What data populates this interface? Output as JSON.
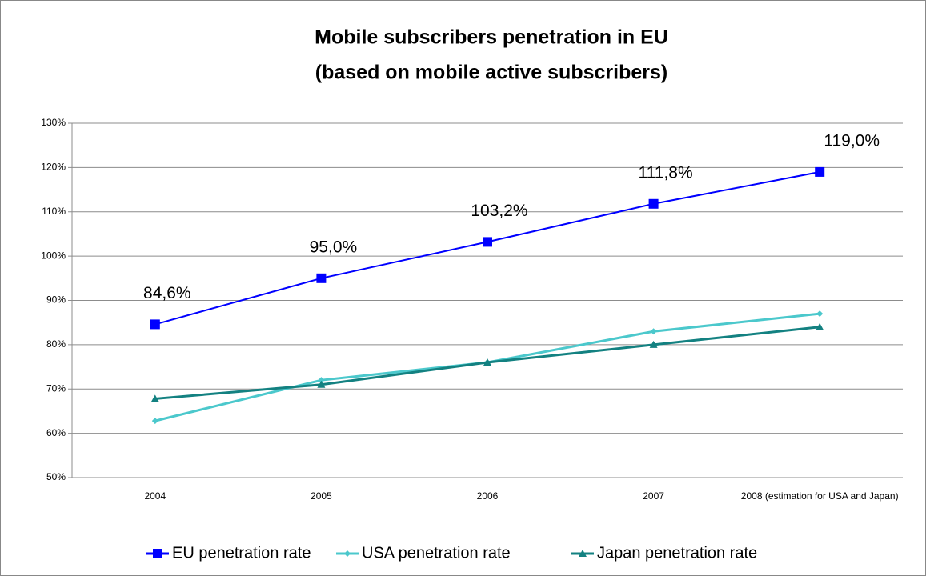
{
  "chart_data": {
    "type": "line",
    "title": "Mobile subscribers  penetration in EU",
    "subtitle": "(based on mobile active subscribers)",
    "categories": [
      "2004",
      "2005",
      "2006",
      "2007",
      "2008 (estimation for USA and Japan)"
    ],
    "series": [
      {
        "name": "EU penetration rate",
        "color": "#0000ff",
        "marker": "square",
        "values": [
          84.6,
          95.0,
          103.2,
          111.8,
          119.0
        ],
        "value_labels": [
          "84,6%",
          "95,0%",
          "103,2%",
          "111,8%",
          "119,0%"
        ]
      },
      {
        "name": "USA penetration rate",
        "color": "#4bc8cc",
        "marker": "diamond",
        "values": [
          62.8,
          72,
          76,
          83,
          87
        ]
      },
      {
        "name": "Japan penetration rate",
        "color": "#138181",
        "marker": "triangle",
        "values": [
          67.8,
          71,
          76,
          80,
          84
        ]
      }
    ],
    "ylim": [
      50,
      130
    ],
    "yticks": [
      {
        "value": 50,
        "label": "50%"
      },
      {
        "value": 60,
        "label": "60%"
      },
      {
        "value": 70,
        "label": "70%"
      },
      {
        "value": 80,
        "label": "80%"
      },
      {
        "value": 90,
        "label": "90%"
      },
      {
        "value": 100,
        "label": "100%"
      },
      {
        "value": 110,
        "label": "110%"
      },
      {
        "value": 120,
        "label": "120%"
      },
      {
        "value": 130,
        "label": "130%"
      }
    ],
    "grid": true,
    "legend": "bottom"
  }
}
